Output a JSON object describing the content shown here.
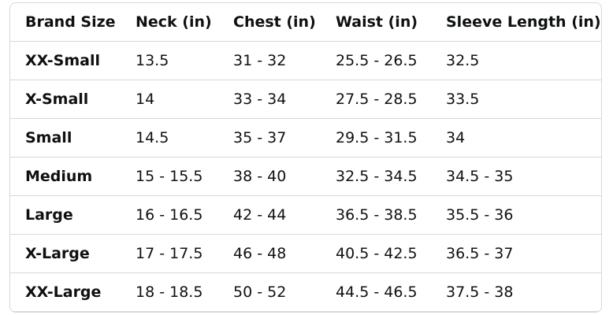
{
  "table": {
    "header": [
      "Brand Size",
      "Neck (in)",
      "Chest (in)",
      "Waist (in)",
      "Sleeve Length (in)"
    ],
    "rows": [
      [
        "XX-Small",
        "13.5",
        "31 - 32",
        "25.5 - 26.5",
        "32.5"
      ],
      [
        "X-Small",
        "14",
        "33 - 34",
        "27.5 - 28.5",
        "33.5"
      ],
      [
        "Small",
        "14.5",
        "35 - 37",
        "29.5 - 31.5",
        "34"
      ],
      [
        "Medium",
        "15 - 15.5",
        "38 - 40",
        "32.5 - 34.5",
        "34.5 - 35"
      ],
      [
        "Large",
        "16 - 16.5",
        "42 - 44",
        "36.5 - 38.5",
        "35.5 - 36"
      ],
      [
        "X-Large",
        "17 - 17.5",
        "46 - 48",
        "40.5 - 42.5",
        "36.5 - 37"
      ],
      [
        "XX-Large",
        "18 - 18.5",
        "50 - 52",
        "44.5 - 46.5",
        "37.5 - 38"
      ]
    ]
  }
}
